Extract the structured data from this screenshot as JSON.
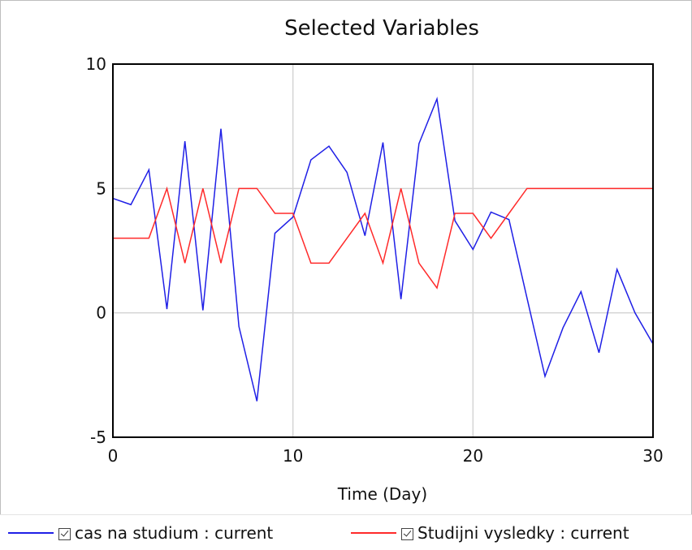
{
  "chart_data": {
    "type": "line",
    "title": "Selected Variables",
    "xlabel": "Time (Day)",
    "ylabel": "",
    "xlim": [
      0,
      30
    ],
    "ylim": [
      -5,
      10
    ],
    "xticks": [
      0,
      10,
      20,
      30
    ],
    "yticks": [
      -5,
      0,
      5,
      10
    ],
    "grid": true,
    "x": [
      0,
      1,
      2,
      3,
      4,
      5,
      6,
      7,
      8,
      9,
      10,
      11,
      12,
      13,
      14,
      15,
      16,
      17,
      18,
      19,
      20,
      21,
      22,
      23,
      24,
      25,
      26,
      27,
      28,
      29,
      30
    ],
    "series": [
      {
        "name": "cas na studium : current",
        "color": "#1f1fe6",
        "values": [
          4.6,
          4.35,
          5.75,
          0.15,
          6.9,
          0.1,
          7.4,
          -0.55,
          -3.55,
          3.2,
          3.85,
          6.15,
          6.7,
          5.65,
          3.1,
          6.85,
          0.55,
          6.8,
          8.6,
          3.7,
          2.55,
          4.05,
          3.75,
          0.6,
          -2.55,
          -0.6,
          0.85,
          -1.6,
          1.75,
          0.0,
          -1.25
        ]
      },
      {
        "name": "Studijni vysledky : current",
        "color": "#ff2a2a",
        "values": [
          3,
          3,
          3,
          5,
          2,
          5,
          2,
          5,
          5,
          4,
          4,
          2,
          2,
          3,
          4,
          2,
          5,
          2,
          1,
          4,
          4,
          3,
          4,
          5,
          5,
          5,
          5,
          5,
          5,
          5,
          5
        ]
      }
    ]
  },
  "legend": {
    "items": [
      {
        "label": "cas na studium : current",
        "color": "#1f1fe6"
      },
      {
        "label": "Studijni vysledky : current",
        "color": "#ff2a2a"
      }
    ]
  }
}
